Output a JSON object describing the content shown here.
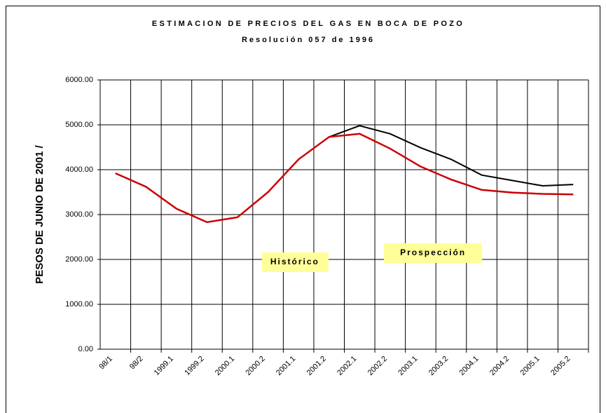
{
  "chart_data": {
    "type": "line",
    "title": "ESTIMACION DE PRECIOS DEL GAS EN BOCA DE POZO",
    "subtitle": "Resolución 057 de 1996",
    "y_label": "PESOS DE JUNIO DE 2001 /",
    "categories": [
      "98/1",
      "98/2",
      "1999.1",
      "1999.2",
      "2000.1",
      "2000.2",
      "2001.1",
      "2001.2",
      "2002.1",
      "2002.2",
      "2003.1",
      "2003.2",
      "2004.1",
      "2004.2",
      "2005.1",
      "2005.2"
    ],
    "series": [
      {
        "color": "#000000",
        "values": [
          null,
          null,
          null,
          null,
          null,
          null,
          null,
          4730,
          4980,
          4800,
          4490,
          4230,
          3880,
          3760,
          3640,
          3670
        ]
      },
      {
        "color": "#cc0000",
        "values": [
          3920,
          3620,
          3130,
          2830,
          2940,
          3500,
          4230,
          4730,
          4800,
          4470,
          4070,
          3780,
          3550,
          3490,
          3460,
          3450
        ]
      }
    ],
    "ylim": [
      0,
      6000
    ],
    "yticks": [
      {
        "value": 0,
        "label": "0.00"
      },
      {
        "value": 1000,
        "label": "1000.00"
      },
      {
        "value": 2000,
        "label": "2000.00"
      },
      {
        "value": 3000,
        "label": "3000.00"
      },
      {
        "value": 4000,
        "label": "4000.00"
      },
      {
        "value": 5000,
        "label": "5000.00"
      },
      {
        "value": 6000,
        "label": "6000.00"
      }
    ],
    "grid": true,
    "annotations": [
      "Histórico",
      "Prospección"
    ]
  }
}
